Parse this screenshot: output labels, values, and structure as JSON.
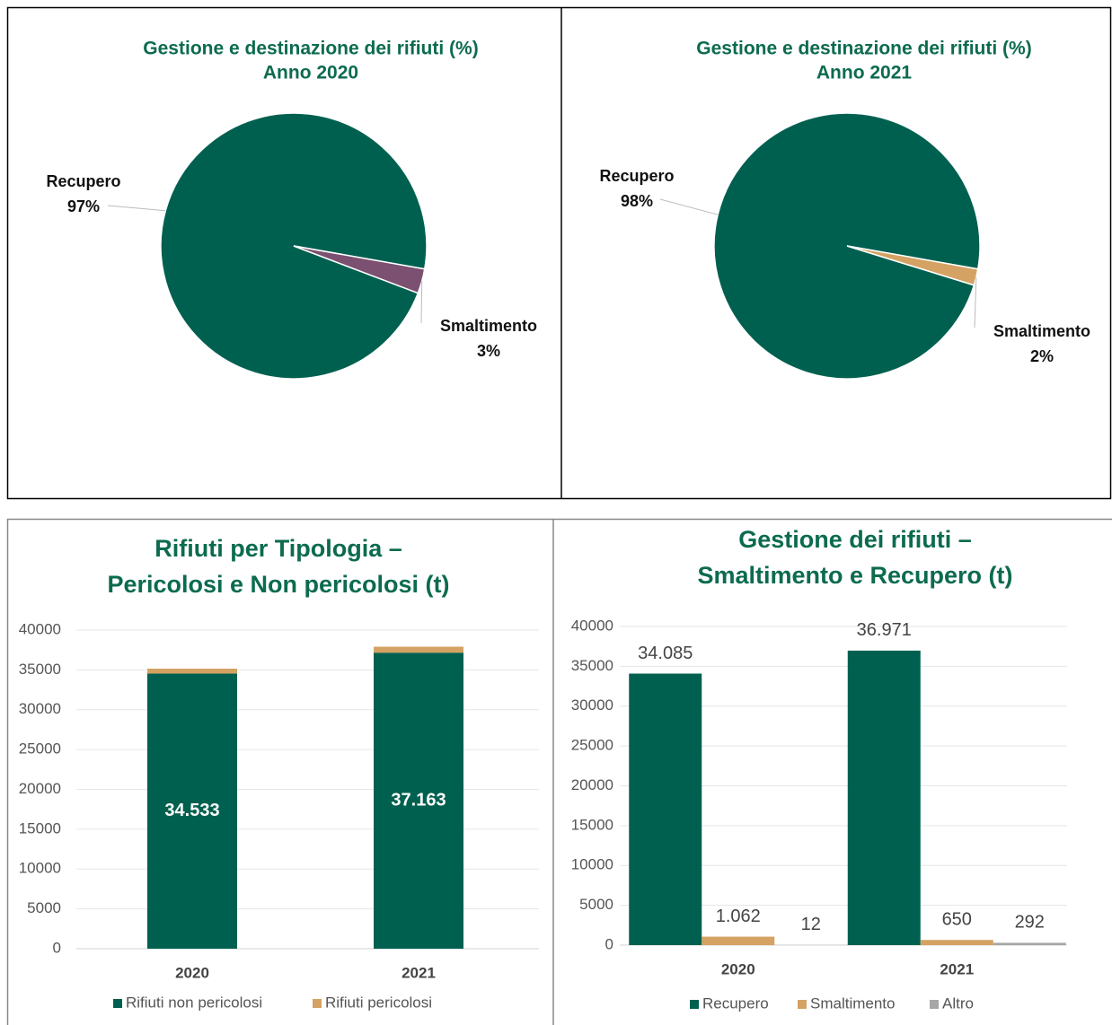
{
  "chart_data": [
    {
      "type": "pie",
      "title": "Gestione e destinazione dei rifiuti (%)",
      "subtitle": "Anno 2020",
      "categories": [
        "Recupero",
        "Smaltimento"
      ],
      "values": [
        97,
        3
      ],
      "value_labels": [
        "97%",
        "3%"
      ],
      "colors": [
        "#00604f",
        "#7b5070"
      ]
    },
    {
      "type": "pie",
      "title": "Gestione e destinazione dei rifiuti (%)",
      "subtitle": "Anno 2021",
      "categories": [
        "Recupero",
        "Smaltimento"
      ],
      "values": [
        98,
        2
      ],
      "value_labels": [
        "98%",
        "2%"
      ],
      "colors": [
        "#00604f",
        "#d4a262"
      ]
    },
    {
      "type": "stacked_bar",
      "title": "Rifiuti per Tipologia –",
      "subtitle": "Pericolosi e Non pericolosi (t)",
      "categories": [
        "2020",
        "2021"
      ],
      "series": [
        {
          "name": "Rifiuti non pericolosi",
          "color": "#00604f",
          "values": [
            34533,
            37163
          ],
          "value_labels": [
            "34.533",
            "37.163"
          ]
        },
        {
          "name": "Rifiuti pericolosi",
          "color": "#d4a262",
          "values": [
            626,
            750
          ]
        }
      ],
      "ylim": [
        0,
        40000
      ],
      "yticks": [
        0,
        5000,
        10000,
        15000,
        20000,
        25000,
        30000,
        35000,
        40000
      ],
      "grid": true,
      "legend": "bottom"
    },
    {
      "type": "grouped_bar",
      "title": "Gestione dei rifiuti –",
      "subtitle": "Smaltimento e Recupero (t)",
      "categories": [
        "2020",
        "2021"
      ],
      "series": [
        {
          "name": "Recupero",
          "color": "#00604f",
          "values": [
            34085,
            36971
          ],
          "value_labels": [
            "34.085",
            "36.971"
          ]
        },
        {
          "name": "Smaltimento",
          "color": "#d4a262",
          "values": [
            1062,
            650
          ],
          "value_labels": [
            "1.062",
            "650"
          ]
        },
        {
          "name": "Altro",
          "color": "#a6a6a6",
          "values": [
            12,
            292
          ],
          "value_labels": [
            "12",
            "292"
          ]
        }
      ],
      "ylim": [
        0,
        40000
      ],
      "yticks": [
        0,
        5000,
        10000,
        15000,
        20000,
        25000,
        30000,
        35000,
        40000
      ],
      "grid": true,
      "legend": "bottom"
    }
  ]
}
